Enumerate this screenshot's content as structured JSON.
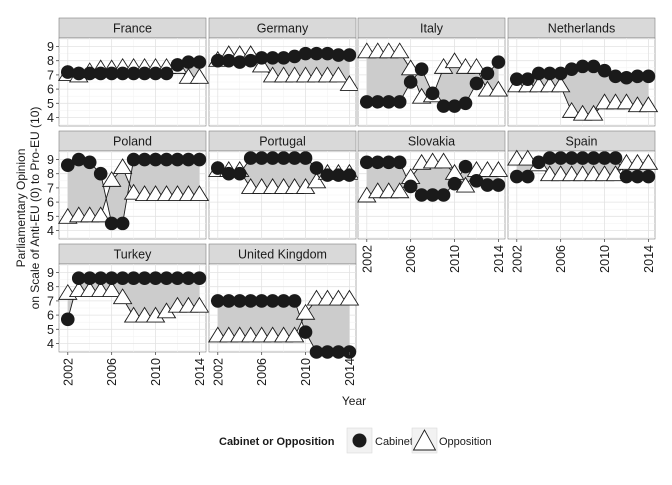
{
  "chart_data": {
    "type": "scatter",
    "ylabel": "Parliamentary Opinion\non Scale of Anti-EU (0) to Pro-EU (10)",
    "xlabel": "Year",
    "x_ticks": [
      2002,
      2006,
      2010,
      2014
    ],
    "y_ticks": [
      4,
      5,
      6,
      7,
      8,
      9
    ],
    "ylim": [
      3.4,
      9.6
    ],
    "xlim": [
      2001.2,
      2014.6
    ],
    "grid": true,
    "shaded_gap": true,
    "legend": {
      "title": "Cabinet or Opposition",
      "position": "bottom",
      "entries": [
        {
          "name": "Cabinet",
          "marker": "circle",
          "color": "#1a1a1a"
        },
        {
          "name": "Opposition",
          "marker": "triangle",
          "color": "#ffffff"
        }
      ]
    },
    "years": [
      2002,
      2003,
      2004,
      2005,
      2006,
      2007,
      2008,
      2009,
      2010,
      2011,
      2012,
      2013,
      2014
    ],
    "panels": [
      {
        "name": "France",
        "cabinet": [
          7.2,
          7.1,
          7.1,
          7.1,
          7.1,
          7.1,
          7.1,
          7.1,
          7.1,
          7.1,
          7.7,
          7.9,
          7.9
        ],
        "opposition": [
          7.0,
          6.9,
          7.2,
          7.4,
          7.4,
          7.5,
          7.5,
          7.5,
          7.5,
          7.5,
          7.5,
          6.8,
          6.8
        ]
      },
      {
        "name": "Germany",
        "cabinet": [
          8.0,
          8.0,
          7.9,
          8.0,
          8.2,
          8.2,
          8.2,
          8.3,
          8.5,
          8.5,
          8.5,
          8.4,
          8.4
        ],
        "opposition": [
          8.0,
          8.4,
          8.4,
          8.4,
          7.6,
          6.9,
          6.9,
          6.9,
          6.9,
          6.9,
          6.9,
          6.9,
          6.3
        ]
      },
      {
        "name": "Italy",
        "cabinet": [
          5.1,
          5.1,
          5.1,
          5.1,
          6.5,
          7.4,
          5.7,
          4.8,
          4.8,
          5.0,
          6.4,
          7.1,
          7.9
        ],
        "opposition": [
          8.6,
          8.6,
          8.6,
          8.6,
          7.4,
          5.4,
          5.5,
          7.5,
          7.9,
          7.5,
          7.5,
          5.9,
          5.9
        ]
      },
      {
        "name": "Netherlands",
        "cabinet": [
          6.7,
          6.7,
          7.1,
          7.1,
          7.1,
          7.4,
          7.6,
          7.6,
          7.3,
          6.9,
          6.8,
          6.9,
          6.9
        ],
        "opposition": [
          6.2,
          6.2,
          6.2,
          6.2,
          6.2,
          4.4,
          4.2,
          4.2,
          5.0,
          5.0,
          5.0,
          4.8,
          4.8
        ]
      },
      {
        "name": "Poland",
        "cabinet": [
          8.6,
          9.0,
          8.8,
          8.0,
          4.5,
          4.5,
          9.0,
          9.0,
          9.0,
          9.0,
          9.0,
          9.0,
          9.0
        ],
        "opposition": [
          4.9,
          5.0,
          5.0,
          5.0,
          7.5,
          8.4,
          6.6,
          6.5,
          6.5,
          6.5,
          6.5,
          6.5,
          6.5
        ]
      },
      {
        "name": "Portugal",
        "cabinet": [
          8.4,
          8.0,
          8.0,
          9.1,
          9.1,
          9.1,
          9.1,
          9.1,
          9.1,
          8.4,
          7.9,
          7.9,
          7.9
        ],
        "opposition": [
          8.2,
          8.2,
          8.2,
          7.0,
          7.0,
          7.0,
          7.0,
          7.0,
          7.0,
          7.4,
          8.0,
          8.0,
          8.0
        ]
      },
      {
        "name": "Slovakia",
        "cabinet": [
          8.8,
          8.8,
          8.8,
          8.8,
          7.1,
          6.5,
          6.5,
          6.5,
          7.3,
          8.5,
          7.5,
          7.2,
          7.2
        ],
        "opposition": [
          6.4,
          6.7,
          6.7,
          6.7,
          7.7,
          8.7,
          8.8,
          8.8,
          8.0,
          7.1,
          8.2,
          8.2,
          8.2
        ]
      },
      {
        "name": "Spain",
        "cabinet": [
          7.8,
          7.8,
          8.8,
          9.1,
          9.1,
          9.1,
          9.1,
          9.1,
          9.1,
          9.1,
          7.8,
          7.8,
          7.8
        ],
        "opposition": [
          9.0,
          9.0,
          8.6,
          7.9,
          7.9,
          7.9,
          7.9,
          7.9,
          7.9,
          7.9,
          8.7,
          8.7,
          8.7
        ]
      },
      {
        "name": "Turkey",
        "cabinet": [
          5.7,
          8.6,
          8.6,
          8.6,
          8.6,
          8.6,
          8.6,
          8.6,
          8.6,
          8.6,
          8.6,
          8.6,
          8.6
        ],
        "opposition": [
          7.5,
          7.7,
          7.7,
          7.7,
          7.7,
          7.2,
          5.9,
          5.9,
          5.9,
          6.2,
          6.6,
          6.6,
          6.6
        ]
      },
      {
        "name": "United Kingdom",
        "cabinet": [
          7.0,
          7.0,
          7.0,
          7.0,
          7.0,
          7.0,
          7.0,
          7.0,
          4.8,
          3.4,
          3.4,
          3.4,
          3.4
        ],
        "opposition": [
          4.5,
          4.5,
          4.5,
          4.5,
          4.5,
          4.5,
          4.5,
          4.5,
          6.1,
          7.1,
          7.1,
          7.1,
          7.1
        ]
      }
    ]
  }
}
